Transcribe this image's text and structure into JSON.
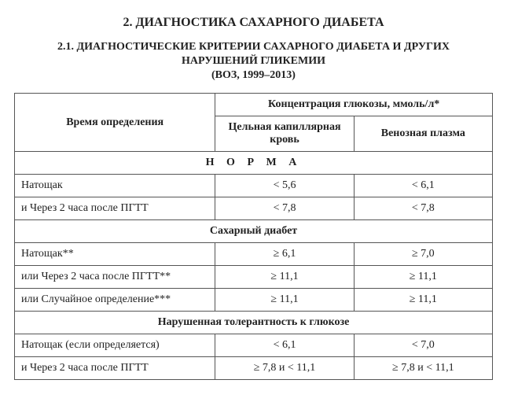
{
  "title": "2. ДИАГНОСТИКА САХАРНОГО ДИАБЕТА",
  "subtitle_line1": "2.1. ДИАГНОСТИЧЕСКИЕ КРИТЕРИИ САХАРНОГО ДИАБЕТА И ДРУГИХ",
  "subtitle_line2": "НАРУШЕНИЙ ГЛИКЕМИИ",
  "subtitle_note": "(ВОЗ, 1999–2013)",
  "table": {
    "col_widths": {
      "time": "42%",
      "capillary": "29%",
      "venous": "29%"
    },
    "header": {
      "time": "Время определения",
      "glucose_top": "Концентрация глюкозы, ммоль/л*",
      "capillary": "Цельная капиллярная кровь",
      "venous": "Венозная плазма"
    },
    "sections": [
      {
        "title": "Н О Р М А",
        "rows": [
          {
            "time": "Натощак",
            "cap": "< 5,6",
            "ven": "< 6,1"
          },
          {
            "time": "и Через 2 часа после ПГТТ",
            "cap": "< 7,8",
            "ven": "< 7,8"
          }
        ]
      },
      {
        "title": "Сахарный диабет",
        "rows": [
          {
            "time": "Натощак**",
            "cap": "≥ 6,1",
            "ven": "≥ 7,0"
          },
          {
            "time": "или Через 2 часа после ПГТТ**",
            "cap": "≥ 11,1",
            "ven": "≥ 11,1"
          },
          {
            "time": "или Случайное определение***",
            "cap": "≥ 11,1",
            "ven": "≥ 11,1"
          }
        ]
      },
      {
        "title": "Нарушенная толерантность к глюкозе",
        "rows": [
          {
            "time": "Натощак (если определяется)",
            "cap": "< 6,1",
            "ven": "< 7,0"
          },
          {
            "time": "и Через 2 часа после ПГТТ",
            "cap": "≥ 7,8 и < 11,1",
            "ven": "≥ 7,8 и < 11,1"
          }
        ]
      }
    ]
  }
}
